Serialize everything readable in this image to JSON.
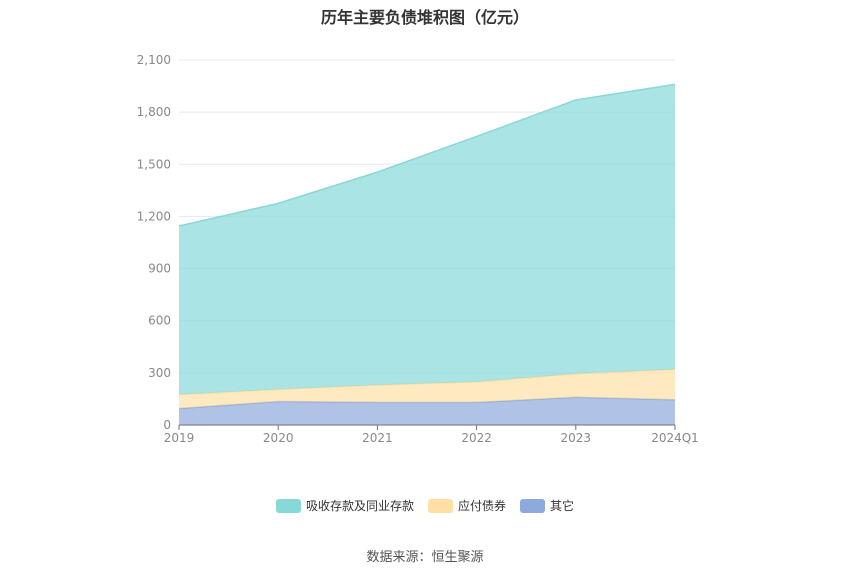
{
  "title": "历年主要负债堆积图（亿元）",
  "source": "数据来源：恒生聚源",
  "chart_data": {
    "type": "area",
    "stacked": true,
    "categories": [
      "2019",
      "2020",
      "2021",
      "2022",
      "2023",
      "2024Q1"
    ],
    "ylim": [
      0,
      2100
    ],
    "yticks": [
      0,
      300,
      600,
      900,
      1200,
      1500,
      1800,
      2100
    ],
    "ytick_labels": [
      "0",
      "300",
      "600",
      "900",
      "1,200",
      "1,500",
      "1,800",
      "2,100"
    ],
    "grid": true,
    "legend_position": "bottom",
    "series": [
      {
        "name": "其它",
        "color": "#8eaadc",
        "values": [
          95,
          135,
          130,
          130,
          160,
          145
        ]
      },
      {
        "name": "应付债券",
        "color": "#fedfa5",
        "values": [
          80,
          70,
          100,
          118,
          135,
          175
        ]
      },
      {
        "name": "吸收存款及同业存款",
        "color": "#88d8da",
        "values": [
          970,
          1070,
          1225,
          1412,
          1575,
          1640
        ]
      }
    ],
    "legend_order": [
      2,
      1,
      0
    ]
  }
}
